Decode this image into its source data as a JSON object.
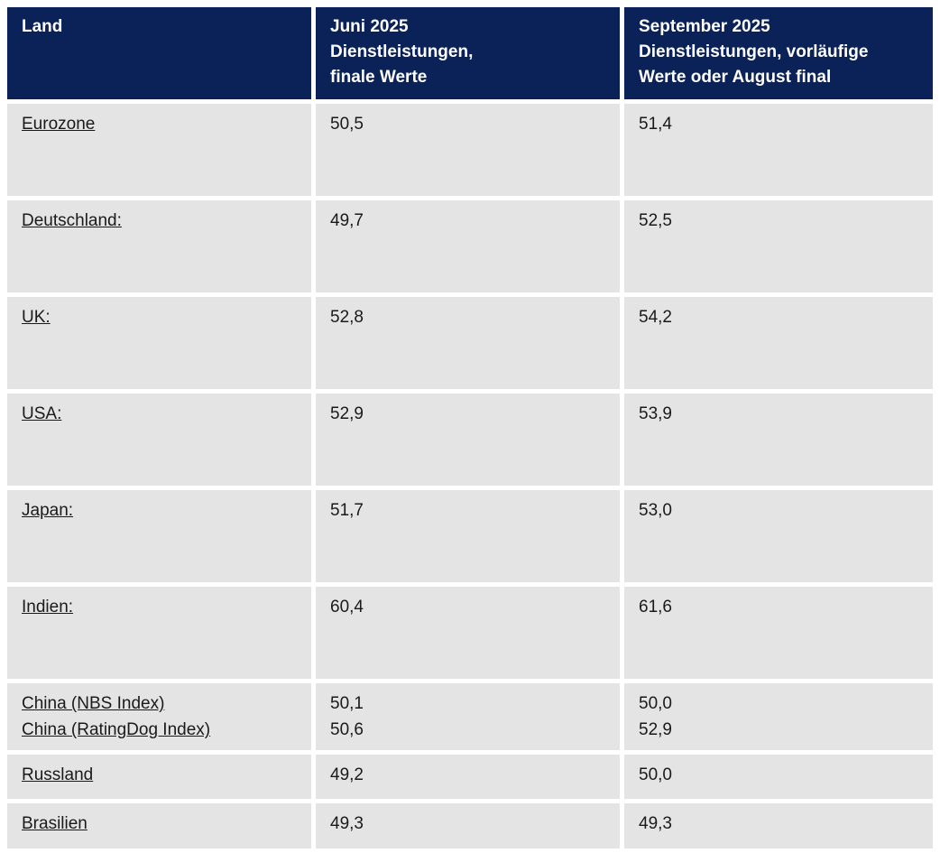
{
  "theme": {
    "header_bg": "#0b2259",
    "header_text": "#ffffff",
    "cell_bg": "#e4e4e4",
    "cell_text": "#1a1a1a",
    "page_bg": "#ffffff"
  },
  "table": {
    "columns": [
      {
        "label": "Land"
      },
      {
        "label": "Juni 2025\nDienstleistungen,\nfinale Werte"
      },
      {
        "label": "September 2025\nDienstleistungen, vorläufige\nWerte oder August final"
      }
    ],
    "rows": [
      {
        "land": "Eurozone",
        "juni": "50,5",
        "september": "51,4"
      },
      {
        "land": "Deutschland:",
        "juni": "49,7",
        "september": "52,5"
      },
      {
        "land": "UK:",
        "juni": "52,8",
        "september": "54,2"
      },
      {
        "land": "USA:",
        "juni": "52,9",
        "september": "53,9"
      },
      {
        "land": "Japan:",
        "juni": "51,7",
        "september": "53,0"
      },
      {
        "land": "Indien:",
        "juni": "60,4",
        "september": "61,6"
      },
      {
        "land": "China (NBS Index)\nChina (RatingDog Index)",
        "juni": "50,1\n50,6",
        "september": "50,0\n52,9"
      },
      {
        "land": "Russland",
        "juni": "49,2",
        "september": "50,0"
      },
      {
        "land": "Brasilien",
        "juni": "49,3",
        "september": "49,3"
      }
    ]
  },
  "chart_data": {
    "type": "table",
    "columns": [
      "Land",
      "Juni 2025 Dienstleistungen, finale Werte",
      "September 2025 Dienstleistungen, vorläufige Werte oder August final"
    ],
    "rows": [
      [
        "Eurozone",
        50.5,
        51.4
      ],
      [
        "Deutschland",
        49.7,
        52.5
      ],
      [
        "UK",
        52.8,
        54.2
      ],
      [
        "USA",
        52.9,
        53.9
      ],
      [
        "Japan",
        51.7,
        53.0
      ],
      [
        "Indien",
        60.4,
        61.6
      ],
      [
        "China (NBS Index)",
        50.1,
        50.0
      ],
      [
        "China (RatingDog Index)",
        50.6,
        52.9
      ],
      [
        "Russland",
        49.2,
        50.0
      ],
      [
        "Brasilien",
        49.3,
        49.3
      ]
    ]
  }
}
